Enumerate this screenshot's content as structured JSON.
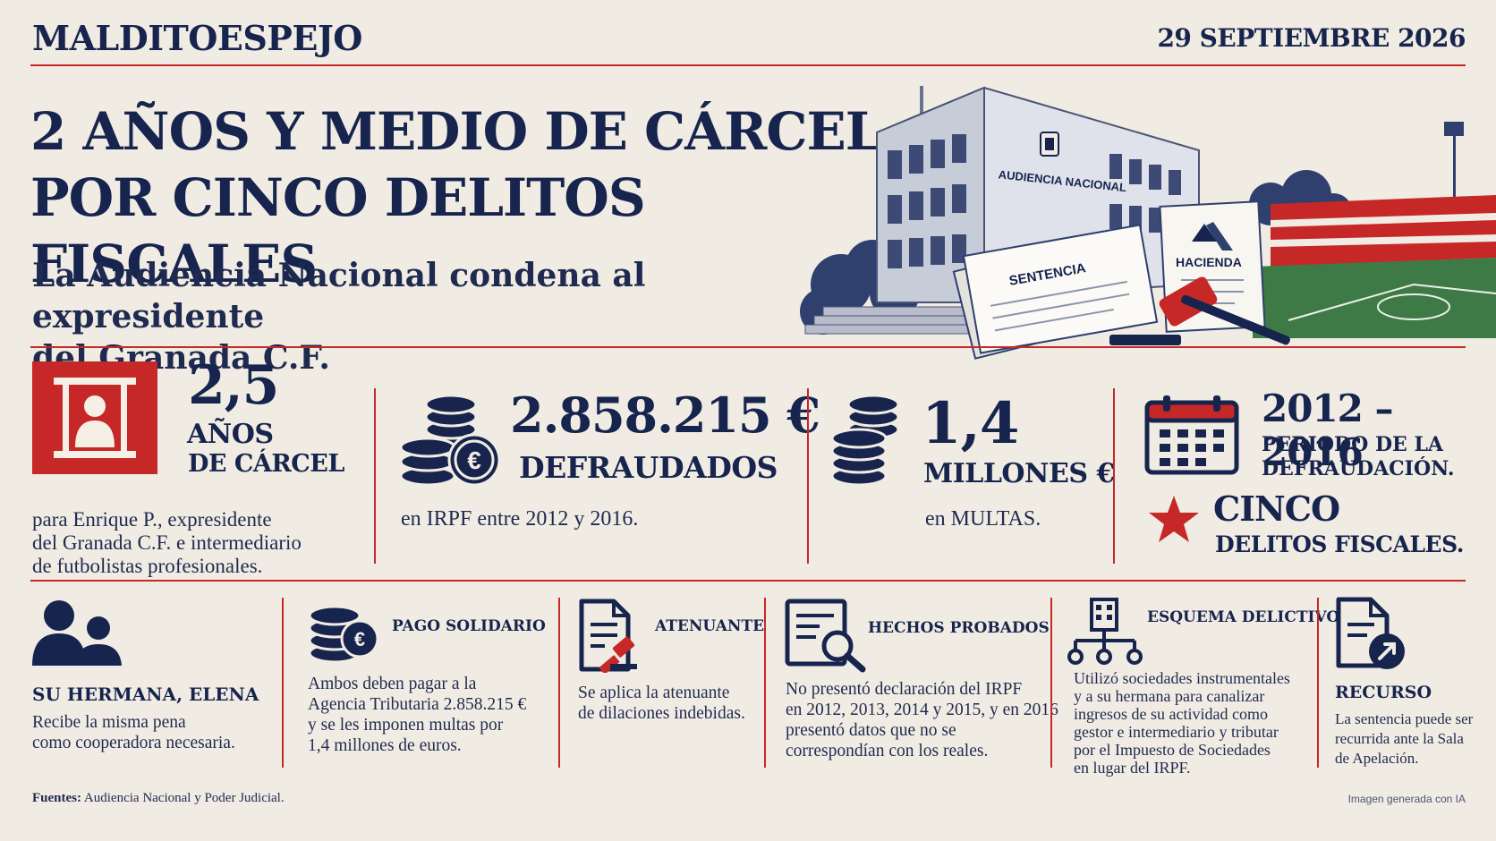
{
  "header": {
    "brand": "MALDITOESPEJO",
    "date": "29 SEPTIEMBRE 2026"
  },
  "headline": {
    "line1": "2 AÑOS Y MEDIO DE CÁRCEL",
    "line2": "POR CINCO DELITOS FISCALES",
    "subtitle_line1": "La Audiencia Nacional condena al expresidente",
    "subtitle_line2": "del Granada C.F."
  },
  "illustration": {
    "building_sign": "AUDIENCIA NACIONAL",
    "document_label": "SENTENCIA",
    "hacienda_label": "HACIENDA"
  },
  "stats": {
    "prison": {
      "icon": "prison-bars-icon",
      "value": "2,5",
      "unit_line1": "AÑOS",
      "unit_line2": "DE CÁRCEL",
      "desc_line1": "para Enrique P., expresidente",
      "desc_line2": "del Granada C.F. e intermediario",
      "desc_line3": "de futbolistas profesionales."
    },
    "defrauded": {
      "icon": "coins-euro-icon",
      "value": "2.858.215 €",
      "label": "DEFRAUDADOS",
      "desc": "en IRPF entre 2012 y 2016."
    },
    "fines": {
      "icon": "coins-icon",
      "value": "1,4",
      "label": "MILLONES €",
      "desc": "en MULTAS."
    },
    "period": {
      "icon": "calendar-icon",
      "value": "2012 – 2016",
      "label_line1": "PERIODO DE LA",
      "label_line2": "DEFRAUDACIÓN."
    },
    "crimes": {
      "icon": "star-icon",
      "value": "CINCO",
      "label": "DELITOS FISCALES."
    }
  },
  "cards": {
    "sister": {
      "icon": "people-icon",
      "title": "SU HERMANA, ELENA",
      "text_line1": "Recibe la misma pena",
      "text_line2": "como cooperadora necesaria."
    },
    "payment": {
      "icon": "coins-euro-icon",
      "title": "PAGO SOLIDARIO",
      "text_line1": "Ambos deben pagar a la",
      "text_line2": "Agencia Tributaria 2.858.215 €",
      "text_line3": "y se les imponen multas por",
      "text_line4": "1,4 millones de euros."
    },
    "mitigating": {
      "icon": "document-gavel-icon",
      "title": "ATENUANTE",
      "text_line1": "Se aplica la atenuante",
      "text_line2": "de dilaciones indebidas."
    },
    "facts": {
      "icon": "document-search-icon",
      "title": "HECHOS PROBADOS",
      "text_line1": "No presentó declaración del IRPF",
      "text_line2": "en 2012, 2013, 2014 y 2015, y en 2016",
      "text_line3": "presentó datos que no se",
      "text_line4": "correspondían con los reales."
    },
    "scheme": {
      "icon": "building-network-icon",
      "title": "ESQUEMA DELICTIVO",
      "text_line1": "Utilizó sociedades instrumentales",
      "text_line2": "y a su hermana para canalizar",
      "text_line3": "ingresos de su actividad como",
      "text_line4": "gestor e intermediario y tributar",
      "text_line5": "por el Impuesto de Sociedades",
      "text_line6": "en lugar del IRPF."
    },
    "appeal": {
      "icon": "document-arrow-icon",
      "title": "RECURSO",
      "text_line1": "La sentencia puede ser",
      "text_line2": "recurrida ante la Sala",
      "text_line3": "de Apelación."
    }
  },
  "footer": {
    "sources_label": "Fuentes:",
    "sources_text": " Audiencia Nacional y Poder Judicial.",
    "ai_note": "Imagen generada con IA"
  },
  "colors": {
    "navy": "#16244e",
    "red": "#c62828",
    "background": "#f1ece3"
  }
}
